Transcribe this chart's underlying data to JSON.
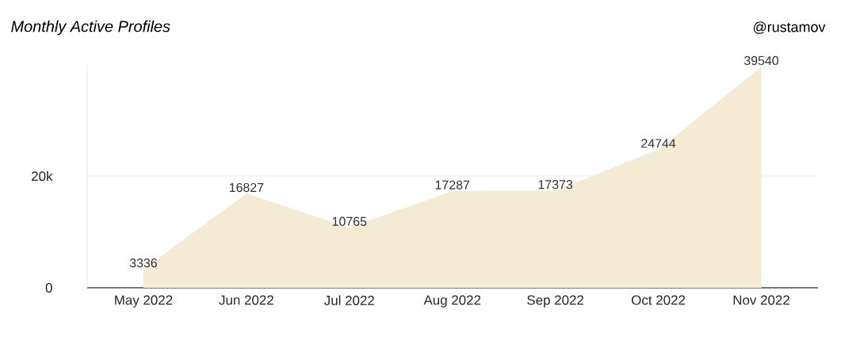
{
  "chart_data": {
    "type": "area",
    "title": "Monthly Active Profiles",
    "categories": [
      "May 2022",
      "Jun 2022",
      "Jul 2022",
      "Aug 2022",
      "Sep 2022",
      "Oct 2022",
      "Nov 2022"
    ],
    "values": [
      3336,
      16827,
      10765,
      17287,
      17373,
      24744,
      39540
    ],
    "color": "#f5ead4",
    "ylim": [
      0,
      40000
    ],
    "yticks": [
      0,
      {
        "value": 20000,
        "label": "20k"
      }
    ],
    "grid": "y",
    "data_labels": true,
    "annotations": [
      "@rustamov"
    ]
  }
}
